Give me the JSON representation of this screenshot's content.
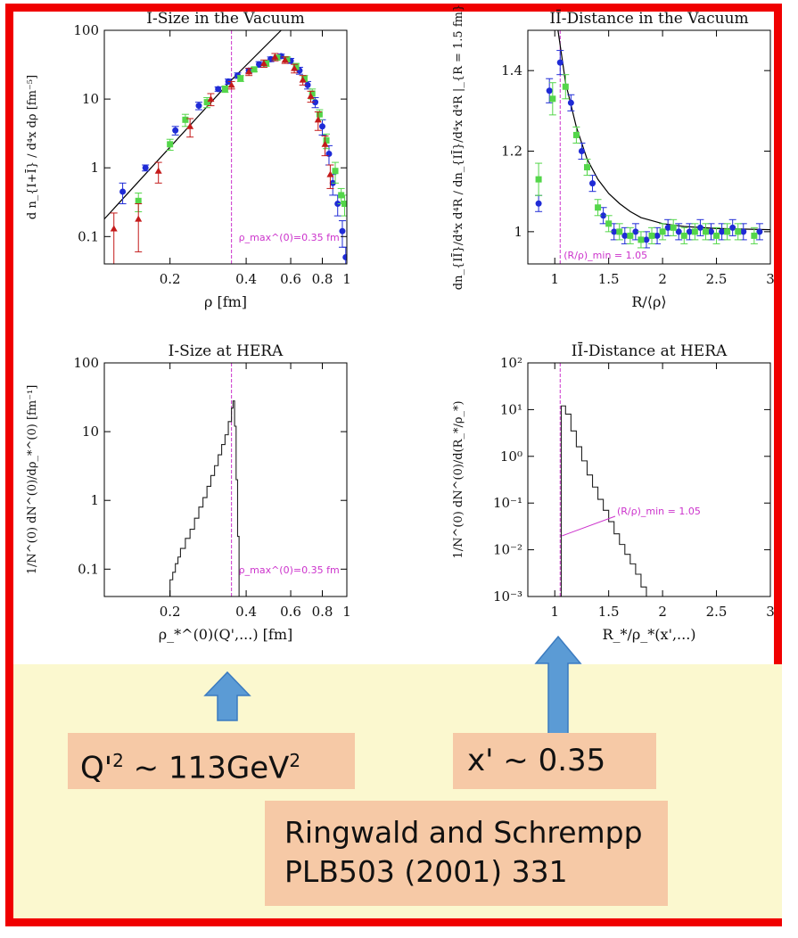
{
  "colors": {
    "frame": "#f00000",
    "yellow_bg": "#fbf8cf",
    "label_box": "#f6c9a6",
    "arrow": "#5b9bd5",
    "blue": "#1f2bd6",
    "green": "#54d64a",
    "red": "#c41a1a",
    "magenta": "#cc33cc"
  },
  "boxes": {
    "q2_base": "Q'",
    "q2_sup": "2",
    "q2_rest": " ~ 113GeV",
    "q2_sup2": "2",
    "x_label": "x' ~ 0.35",
    "ref_line1": "Ringwald and Schrempp",
    "ref_line2": "PLB503 (2001) 331"
  },
  "chart_data": [
    {
      "id": "p1",
      "type": "scatter",
      "title": "I-Size in the Vacuum",
      "xlabel": "ρ [fm]",
      "ylabel": "d n_{I+Ī} / d⁴x dρ  [fm⁻⁵]",
      "xscale": "log",
      "yscale": "log",
      "xlim": [
        0.11,
        1.0
      ],
      "ylim": [
        0.04,
        100
      ],
      "xticks": [
        0.2,
        0.4,
        0.6,
        0.8,
        1
      ],
      "xticklabels": [
        "0.2",
        "0.4",
        "0.6",
        "0.8",
        "1"
      ],
      "yticks": [
        0.1,
        1,
        10,
        100
      ],
      "yticklabels": [
        "0.1",
        "1",
        "10",
        "100"
      ],
      "annotation": "ρ_max^(0)=0.35 fm",
      "vline": 0.35,
      "series": [
        {
          "color": "blue",
          "points": [
            [
              0.13,
              0.45,
              0.15
            ],
            [
              0.16,
              1.0,
              0.1
            ],
            [
              0.21,
              3.5,
              0.5
            ],
            [
              0.26,
              8,
              1
            ],
            [
              0.31,
              14,
              1
            ],
            [
              0.34,
              18,
              1.5
            ],
            [
              0.37,
              22,
              2
            ],
            [
              0.41,
              26,
              2
            ],
            [
              0.45,
              32,
              3
            ],
            [
              0.5,
              38,
              3
            ],
            [
              0.55,
              42,
              3
            ],
            [
              0.6,
              36,
              3
            ],
            [
              0.65,
              26,
              3
            ],
            [
              0.7,
              16,
              2
            ],
            [
              0.75,
              9,
              1.5
            ],
            [
              0.8,
              4,
              1
            ],
            [
              0.85,
              1.6,
              0.5
            ],
            [
              0.88,
              0.6,
              0.2
            ],
            [
              0.92,
              0.3,
              0.1
            ],
            [
              0.96,
              0.12,
              0.05
            ],
            [
              0.99,
              0.05,
              0.02
            ]
          ]
        },
        {
          "color": "green",
          "points": [
            [
              0.15,
              0.33,
              0.1
            ],
            [
              0.2,
              2.2,
              0.4
            ],
            [
              0.23,
              5,
              1
            ],
            [
              0.28,
              9,
              1.5
            ],
            [
              0.33,
              14,
              1.5
            ],
            [
              0.38,
              20,
              2
            ],
            [
              0.43,
              27,
              2
            ],
            [
              0.48,
              33,
              3
            ],
            [
              0.53,
              40,
              3
            ],
            [
              0.58,
              38,
              3
            ],
            [
              0.63,
              30,
              3
            ],
            [
              0.68,
              20,
              2
            ],
            [
              0.73,
              12,
              2
            ],
            [
              0.78,
              6,
              1
            ],
            [
              0.83,
              2.5,
              0.6
            ],
            [
              0.9,
              0.9,
              0.3
            ],
            [
              0.95,
              0.4,
              0.1
            ],
            [
              0.98,
              0.3,
              0.1
            ]
          ]
        },
        {
          "color": "red",
          "points": [
            [
              0.12,
              0.13,
              0.09
            ],
            [
              0.15,
              0.18,
              0.12
            ],
            [
              0.18,
              0.9,
              0.3
            ],
            [
              0.24,
              4,
              1.2
            ],
            [
              0.29,
              10,
              2
            ],
            [
              0.35,
              16,
              2
            ],
            [
              0.41,
              25,
              3
            ],
            [
              0.47,
              33,
              4
            ],
            [
              0.52,
              41,
              5
            ],
            [
              0.57,
              37,
              4
            ],
            [
              0.62,
              28,
              4
            ],
            [
              0.67,
              19,
              3
            ],
            [
              0.72,
              11,
              2
            ],
            [
              0.77,
              5,
              1.5
            ],
            [
              0.82,
              2.2,
              0.7
            ],
            [
              0.86,
              0.8,
              0.3
            ]
          ]
        }
      ],
      "fit_line": [
        [
          0.11,
          0.18
        ],
        [
          0.35,
          19
        ],
        [
          0.55,
          100
        ]
      ]
    },
    {
      "id": "p2",
      "type": "scatter",
      "title": "IĪ-Distance in the Vacuum",
      "xlabel": "R/⟨ρ⟩",
      "ylabel": "dn_{IĪ}/d⁴x d⁴R / dn_{IĪ}/d⁴x d⁴R |_{R = 1.5 fm}",
      "xlim": [
        0.75,
        3.0
      ],
      "ylim": [
        0.92,
        1.5
      ],
      "xticks": [
        1,
        1.5,
        2,
        2.5,
        3
      ],
      "xticklabels": [
        "1",
        "1.5",
        "2",
        "2.5",
        "3"
      ],
      "yticks": [
        1,
        1.2,
        1.4
      ],
      "yticklabels": [
        "1",
        "1.2",
        "1.4"
      ],
      "annotation": "(R/ρ)_min = 1.05",
      "vline": 1.05,
      "series": [
        {
          "color": "blue",
          "points": [
            [
              0.85,
              1.07,
              0.02
            ],
            [
              0.95,
              1.35,
              0.03
            ],
            [
              1.05,
              1.42,
              0.03
            ],
            [
              1.15,
              1.32,
              0.02
            ],
            [
              1.25,
              1.2,
              0.02
            ],
            [
              1.35,
              1.12,
              0.02
            ],
            [
              1.45,
              1.04,
              0.02
            ],
            [
              1.55,
              1.0,
              0.02
            ],
            [
              1.65,
              0.99,
              0.02
            ],
            [
              1.75,
              1.0,
              0.02
            ],
            [
              1.85,
              0.98,
              0.02
            ],
            [
              1.95,
              0.99,
              0.02
            ],
            [
              2.05,
              1.01,
              0.02
            ],
            [
              2.15,
              1.0,
              0.02
            ],
            [
              2.25,
              1.0,
              0.02
            ],
            [
              2.35,
              1.01,
              0.02
            ],
            [
              2.45,
              1.0,
              0.02
            ],
            [
              2.55,
              1.0,
              0.02
            ],
            [
              2.65,
              1.01,
              0.02
            ],
            [
              2.75,
              1.0,
              0.02
            ],
            [
              2.9,
              1.0,
              0.02
            ]
          ]
        },
        {
          "color": "green",
          "points": [
            [
              0.85,
              1.13,
              0.04
            ],
            [
              0.98,
              1.33,
              0.04
            ],
            [
              1.1,
              1.36,
              0.03
            ],
            [
              1.2,
              1.24,
              0.02
            ],
            [
              1.3,
              1.16,
              0.02
            ],
            [
              1.4,
              1.06,
              0.02
            ],
            [
              1.5,
              1.02,
              0.02
            ],
            [
              1.6,
              1.0,
              0.02
            ],
            [
              1.7,
              0.99,
              0.02
            ],
            [
              1.8,
              0.98,
              0.02
            ],
            [
              1.9,
              0.99,
              0.02
            ],
            [
              2.0,
              1.0,
              0.02
            ],
            [
              2.1,
              1.01,
              0.02
            ],
            [
              2.2,
              0.99,
              0.02
            ],
            [
              2.3,
              1.0,
              0.02
            ],
            [
              2.4,
              1.0,
              0.02
            ],
            [
              2.5,
              0.99,
              0.02
            ],
            [
              2.6,
              1.0,
              0.02
            ],
            [
              2.7,
              1.0,
              0.02
            ],
            [
              2.85,
              0.99,
              0.02
            ]
          ]
        }
      ],
      "fit_curve": [
        [
          1.03,
          1.5
        ],
        [
          1.1,
          1.37
        ],
        [
          1.2,
          1.26
        ],
        [
          1.3,
          1.18
        ],
        [
          1.4,
          1.13
        ],
        [
          1.5,
          1.095
        ],
        [
          1.6,
          1.07
        ],
        [
          1.7,
          1.05
        ],
        [
          1.8,
          1.035
        ],
        [
          2.0,
          1.02
        ],
        [
          2.2,
          1.013
        ],
        [
          2.5,
          1.008
        ],
        [
          3.0,
          1.005
        ]
      ]
    },
    {
      "id": "p3",
      "type": "line",
      "title": "I-Size at HERA",
      "xlabel": "ρ_*^(0)(Q',...) [fm]",
      "ylabel": "1/N^(0) dN^(0)/dρ_*^(0)  [fm⁻¹]",
      "xscale": "log",
      "yscale": "log",
      "xlim": [
        0.11,
        1.0
      ],
      "ylim": [
        0.04,
        100
      ],
      "xticks": [
        0.2,
        0.4,
        0.6,
        0.8,
        1
      ],
      "xticklabels": [
        "0.2",
        "0.4",
        "0.6",
        "0.8",
        "1"
      ],
      "yticks": [
        0.1,
        1,
        10,
        100
      ],
      "yticklabels": [
        "0.1",
        "1",
        "10",
        "100"
      ],
      "annotation": "ρ_max^(0)=0.35 fm",
      "vline": 0.35,
      "series": [
        {
          "color": "black",
          "step": [
            [
              0.195,
              0.04
            ],
            [
              0.2,
              0.07
            ],
            [
              0.205,
              0.09
            ],
            [
              0.21,
              0.12
            ],
            [
              0.215,
              0.15
            ],
            [
              0.22,
              0.2
            ],
            [
              0.23,
              0.28
            ],
            [
              0.24,
              0.38
            ],
            [
              0.25,
              0.55
            ],
            [
              0.26,
              0.8
            ],
            [
              0.27,
              1.1
            ],
            [
              0.28,
              1.6
            ],
            [
              0.29,
              2.3
            ],
            [
              0.3,
              3.2
            ],
            [
              0.31,
              4.6
            ],
            [
              0.32,
              6.5
            ],
            [
              0.33,
              9
            ],
            [
              0.34,
              14
            ],
            [
              0.35,
              22
            ],
            [
              0.355,
              28
            ],
            [
              0.36,
              12
            ],
            [
              0.365,
              2
            ],
            [
              0.37,
              0.3
            ],
            [
              0.375,
              0.04
            ]
          ]
        }
      ]
    },
    {
      "id": "p4",
      "type": "line",
      "title": "IĪ-Distance at HERA",
      "xlabel": "R_*/ρ_*(x',...)",
      "ylabel": "1/N^(0) dN^(0)/d(R_*/ρ_*)",
      "yscale": "log",
      "xlim": [
        0.75,
        3.0
      ],
      "ylim": [
        0.001,
        100
      ],
      "xticks": [
        1,
        1.5,
        2,
        2.5,
        3
      ],
      "xticklabels": [
        "1",
        "1.5",
        "2",
        "2.5",
        "3"
      ],
      "yticks": [
        0.001,
        0.01,
        0.1,
        1,
        10,
        100
      ],
      "yticklabels": [
        "10⁻³",
        "10⁻²",
        "10⁻¹",
        "10⁰",
        "10¹",
        "10²"
      ],
      "annotation": "(R/ρ)_min = 1.05",
      "vline": 1.05,
      "series": [
        {
          "color": "black",
          "step": [
            [
              1.0,
              0.001
            ],
            [
              1.02,
              0.001
            ],
            [
              1.04,
              0.001
            ],
            [
              1.06,
              12
            ],
            [
              1.1,
              8
            ],
            [
              1.15,
              3.5
            ],
            [
              1.2,
              1.6
            ],
            [
              1.25,
              0.8
            ],
            [
              1.3,
              0.4
            ],
            [
              1.35,
              0.22
            ],
            [
              1.4,
              0.12
            ],
            [
              1.45,
              0.07
            ],
            [
              1.5,
              0.04
            ],
            [
              1.55,
              0.022
            ],
            [
              1.6,
              0.013
            ],
            [
              1.65,
              0.008
            ],
            [
              1.7,
              0.005
            ],
            [
              1.75,
              0.003
            ],
            [
              1.8,
              0.0016
            ],
            [
              1.85,
              0.001
            ],
            [
              1.9,
              0.001
            ]
          ]
        }
      ]
    }
  ]
}
